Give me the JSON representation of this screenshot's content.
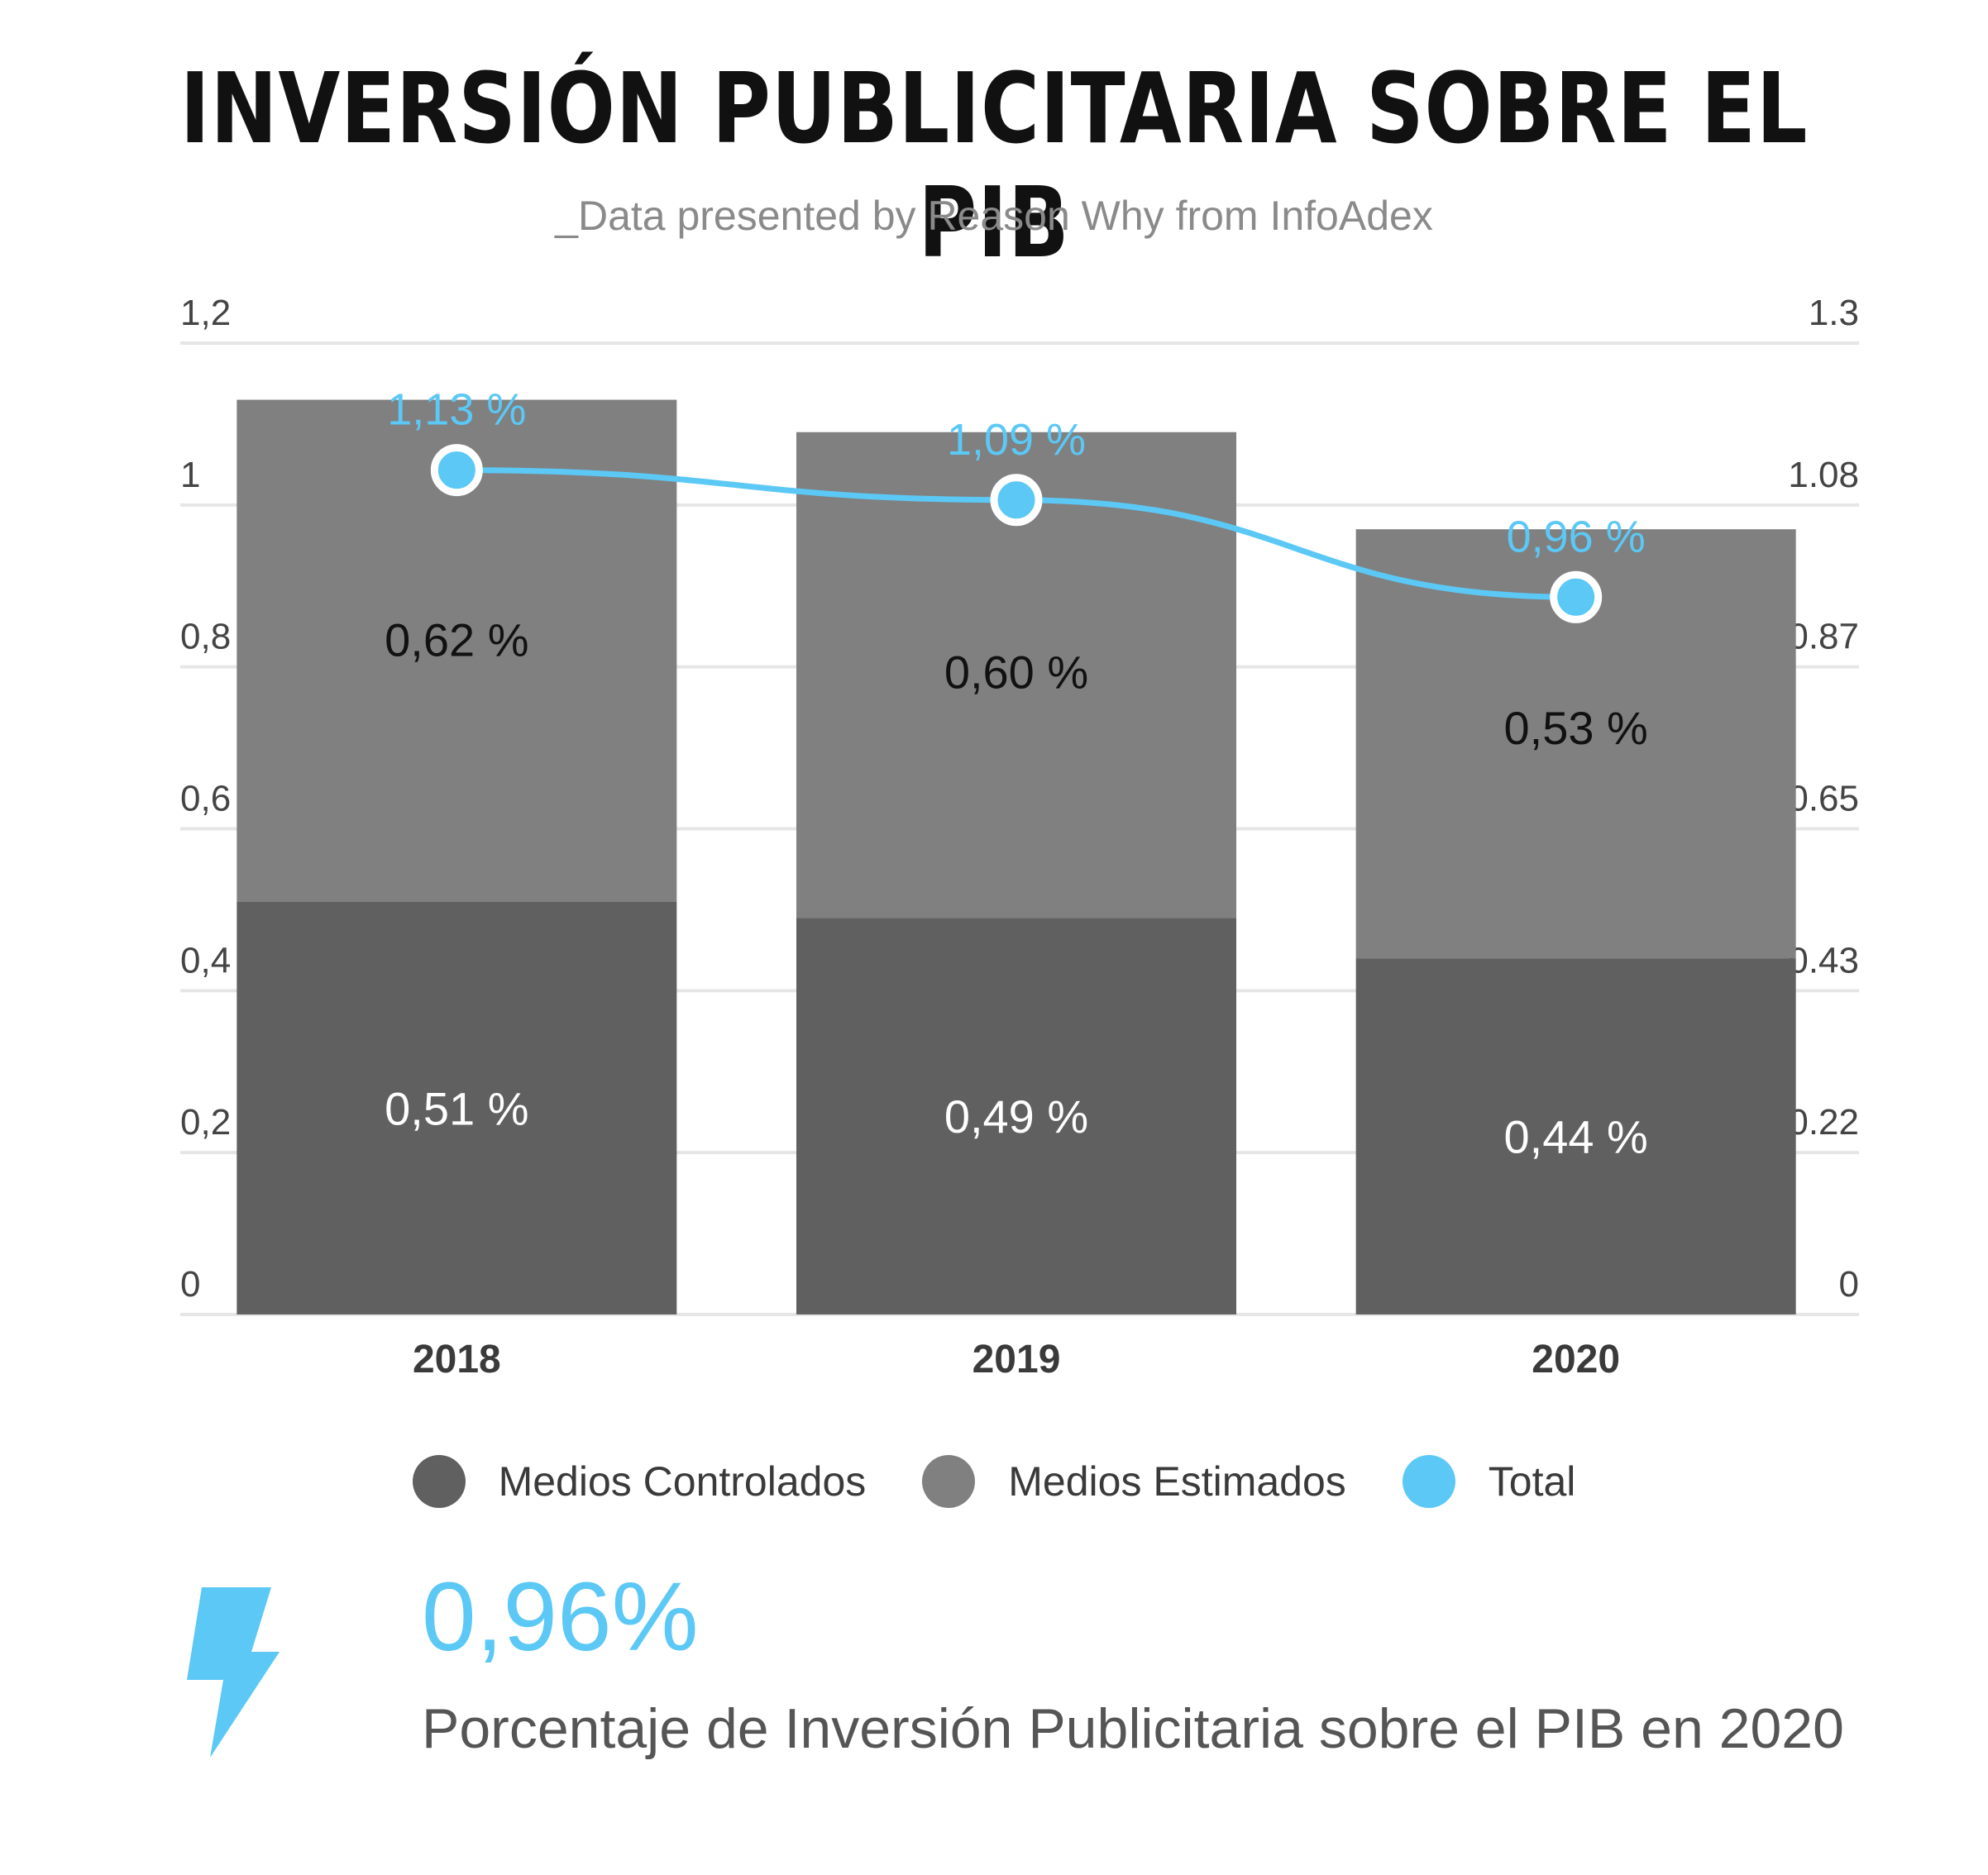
{
  "header": {
    "title": "INVERSIÓN PUBLICITARIA SOBRE EL PIB",
    "subtitle": "_Data presented by Reason Why from InfoAdex"
  },
  "colors": {
    "controlados": "#606060",
    "estimados": "#808080",
    "total": "#5bc8f5",
    "grid": "#e6e6e6"
  },
  "chart_data": {
    "type": "bar",
    "stacked": true,
    "categories": [
      "2018",
      "2019",
      "2020"
    ],
    "series": [
      {
        "name": "Medios Controlados",
        "values": [
          0.51,
          0.49,
          0.44
        ],
        "labels": [
          "0,51 %",
          "0,49 %",
          "0,44 %"
        ]
      },
      {
        "name": "Medios Estimados",
        "values": [
          0.62,
          0.6,
          0.53
        ],
        "labels": [
          "0,62 %",
          "0,60 %",
          "0,53 %"
        ]
      },
      {
        "name": "Total",
        "type": "line",
        "values": [
          1.13,
          1.09,
          0.96
        ],
        "labels": [
          "1,13 %",
          "1,09 %",
          "0,96 %"
        ]
      }
    ],
    "left_axis": {
      "ticks": [
        "0",
        "0,2",
        "0,4",
        "0,6",
        "0,8",
        "1",
        "1,2"
      ],
      "ylim": [
        0,
        1.2
      ]
    },
    "right_axis": {
      "ticks": [
        "0",
        "0.22",
        "0.43",
        "0.65",
        "0.87",
        "1.08",
        "1.3"
      ],
      "ylim": [
        0,
        1.3
      ]
    },
    "grid": true,
    "legend_position": "bottom"
  },
  "highlight": {
    "value": "0,96%",
    "caption": "Porcentaje de Inversión Publicitaria sobre el PIB en 2020",
    "icon": "lightning-bolt-icon"
  }
}
